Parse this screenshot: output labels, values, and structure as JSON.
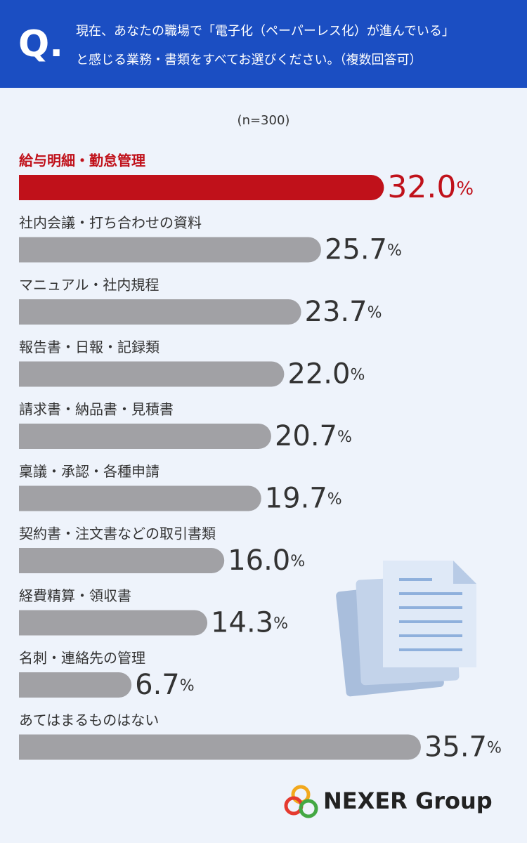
{
  "chart_data": {
    "type": "bar",
    "orientation": "horizontal",
    "question_mark": "Q.",
    "title_lines": [
      "現在、あなたの職場で「電子化（ペーパーレス化）が進んでいる」",
      "と感じる業務・書類をすべてお選びください。（複数回答可）"
    ],
    "subtitle": "(n=300)",
    "categories": [
      "給与明細・勤怠管理",
      "社内会議・打ち合わせの資料",
      "マニュアル・社内規程",
      "報告書・日報・記録類",
      "請求書・納品書・見積書",
      "稟議・承認・各種申請",
      "契約書・注文書などの取引書類",
      "経費精算・領収書",
      "名刺・連絡先の管理",
      "あてはまるものはない"
    ],
    "values": [
      32.0,
      25.7,
      23.7,
      22.0,
      20.7,
      19.7,
      16.0,
      14.3,
      6.7,
      35.7
    ],
    "value_labels": [
      "32.0",
      "25.7",
      "23.7",
      "22.0",
      "20.7",
      "19.7",
      "16.0",
      "14.3",
      "6.7",
      "35.7"
    ],
    "value_unit": "%",
    "colors": [
      "#c0111a",
      "#a1a1a5",
      "#a1a1a5",
      "#a1a1a5",
      "#a1a1a5",
      "#a1a1a5",
      "#a1a1a5",
      "#a1a1a5",
      "#a1a1a5",
      "#a1a1a5"
    ],
    "label_colors": [
      "#c0111a",
      "#333333",
      "#333333",
      "#333333",
      "#333333",
      "#333333",
      "#333333",
      "#333333",
      "#333333",
      "#333333"
    ],
    "brand": "NEXER Group"
  }
}
